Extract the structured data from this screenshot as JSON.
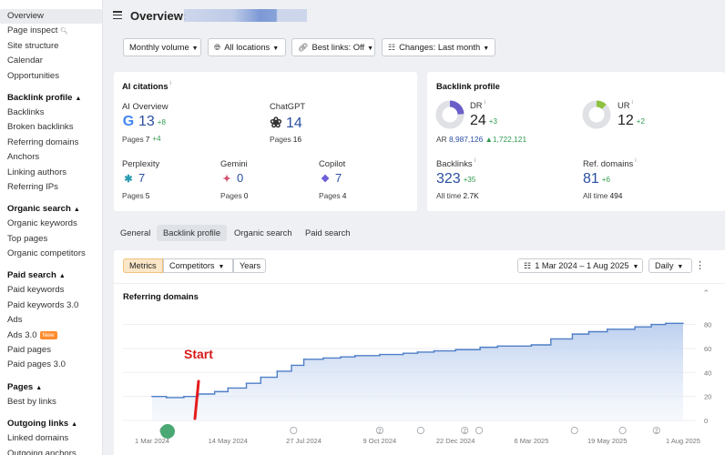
{
  "sidebar": {
    "top_items": [
      "Overview",
      "Page inspect",
      "Site structure",
      "Calendar",
      "Opportunities"
    ],
    "sections": [
      {
        "title": "Backlink profile",
        "items": [
          "Backlinks",
          "Broken backlinks",
          "Referring domains",
          "Anchors",
          "Linking authors",
          "Referring IPs"
        ]
      },
      {
        "title": "Organic search",
        "items": [
          "Organic keywords",
          "Top pages",
          "Organic competitors"
        ]
      },
      {
        "title": "Paid search",
        "items": [
          "Paid keywords",
          "Paid keywords 3.0",
          "Ads",
          "Ads 3.0",
          "Paid pages",
          "Paid pages 3.0"
        ]
      },
      {
        "title": "Pages",
        "items": [
          "Best by links"
        ]
      },
      {
        "title": "Outgoing links",
        "items": [
          "Linked domains",
          "Outgoing anchors"
        ]
      }
    ],
    "new_badge": "New"
  },
  "header": {
    "title": "Overview:"
  },
  "filters": {
    "volume": "Monthly volume",
    "locations": "All locations",
    "best_links": "Best links: Off",
    "changes": "Changes: Last month"
  },
  "ai_citations": {
    "title": "AI citations",
    "pages_label": "Pages",
    "engines": {
      "ai_overview": {
        "name": "AI Overview",
        "value": "13",
        "delta": "+8",
        "pages": "7",
        "pages_delta": "+4"
      },
      "chatgpt": {
        "name": "ChatGPT",
        "value": "14",
        "pages": "16"
      },
      "perplexity": {
        "name": "Perplexity",
        "value": "7",
        "pages": "5"
      },
      "gemini": {
        "name": "Gemini",
        "value": "0",
        "pages": "0"
      },
      "copilot": {
        "name": "Copilot",
        "value": "7",
        "pages": "4"
      }
    }
  },
  "backlink_profile": {
    "title": "Backlink profile",
    "dr": {
      "label": "DR",
      "value": "24",
      "delta": "+3",
      "fraction": 0.24
    },
    "ur": {
      "label": "UR",
      "value": "12",
      "delta": "+2",
      "fraction": 0.12
    },
    "ar": {
      "label": "AR",
      "value": "8,987,126",
      "delta": "1,722,121"
    },
    "backlinks": {
      "label": "Backlinks",
      "value": "323",
      "delta": "+35",
      "alltime_label": "All time",
      "alltime": "2.7K"
    },
    "ref_domains": {
      "label": "Ref. domains",
      "value": "81",
      "delta": "+6",
      "alltime_label": "All time",
      "alltime": "494"
    }
  },
  "tabs": [
    "General",
    "Backlink profile",
    "Organic search",
    "Paid search"
  ],
  "segments": [
    "Metrics",
    "Competitors",
    "Years"
  ],
  "date_range": "1 Mar 2024 – 1 Aug 2025",
  "granularity": "Daily",
  "annotation": "Start",
  "chart_data": {
    "type": "area",
    "title": "Referring domains",
    "x_ticks": [
      "1 Mar 2024",
      "14 May 2024",
      "27 Jul 2024",
      "9 Oct 2024",
      "22 Dec 2024",
      "6 Mar 2025",
      "19 May 2025",
      "1 Aug 2025"
    ],
    "y_ticks": [
      "0",
      "20",
      "40",
      "60",
      "80"
    ],
    "ylim": [
      0,
      85
    ],
    "x": [
      "2024-03-01",
      "2024-03-15",
      "2024-04-01",
      "2024-04-15",
      "2024-05-01",
      "2024-05-14",
      "2024-06-01",
      "2024-06-15",
      "2024-07-01",
      "2024-07-15",
      "2024-07-27",
      "2024-08-15",
      "2024-09-01",
      "2024-09-15",
      "2024-10-09",
      "2024-11-01",
      "2024-11-15",
      "2024-12-01",
      "2024-12-22",
      "2025-01-15",
      "2025-02-01",
      "2025-03-06",
      "2025-03-25",
      "2025-04-15",
      "2025-05-01",
      "2025-05-19",
      "2025-06-15",
      "2025-07-01",
      "2025-07-15",
      "2025-08-01"
    ],
    "values": [
      20,
      19,
      20,
      22,
      24,
      27,
      31,
      36,
      41,
      46,
      51,
      52,
      53,
      54,
      55,
      56,
      57,
      58,
      59,
      61,
      62,
      63,
      68,
      72,
      74,
      76,
      78,
      80,
      81,
      81
    ],
    "markers": [
      {
        "date": "2024-03-12",
        "label": "2"
      },
      {
        "date": "2024-07-17",
        "label": ""
      },
      {
        "date": "2024-10-09",
        "label": "2"
      },
      {
        "date": "2024-11-18",
        "label": ""
      },
      {
        "date": "2024-12-31",
        "label": "2"
      },
      {
        "date": "2025-01-14",
        "label": ""
      },
      {
        "date": "2025-04-17",
        "label": ""
      },
      {
        "date": "2025-06-03",
        "label": ""
      },
      {
        "date": "2025-07-06",
        "label": "2"
      }
    ],
    "grid": true,
    "color": "#4f7fc7"
  }
}
